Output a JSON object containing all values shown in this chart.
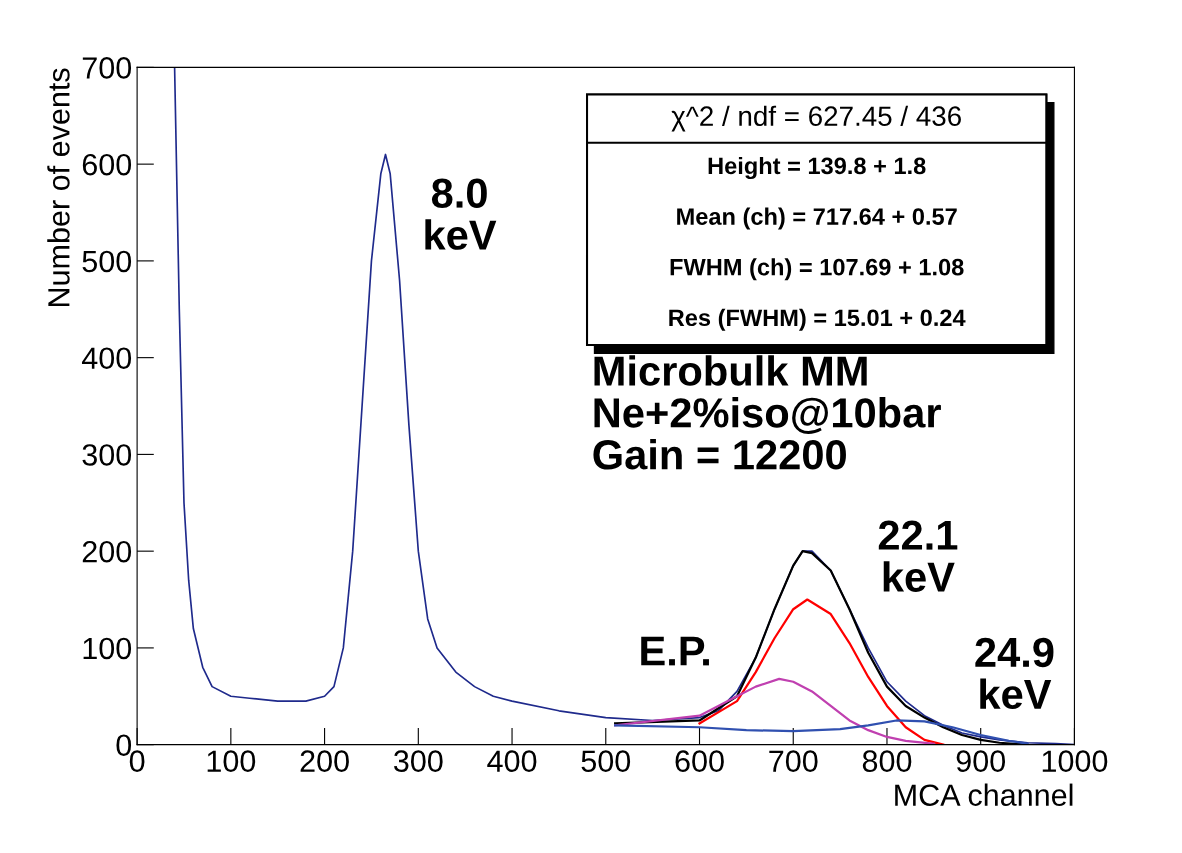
{
  "chart_data": {
    "type": "line",
    "xlabel": "MCA channel",
    "ylabel": "Number of events",
    "xlim": [
      0,
      1000
    ],
    "xticks": [
      0,
      100,
      200,
      300,
      400,
      500,
      600,
      700,
      800,
      900,
      1000
    ],
    "ylim": [
      0,
      700
    ],
    "yticks": [
      0,
      100,
      200,
      300,
      400,
      500,
      600,
      700
    ],
    "grid": false,
    "legend": false,
    "marker": "none",
    "line_style": "solid",
    "series": [
      {
        "color": "#1f2a8c",
        "x": [
          40,
          45,
          50,
          55,
          60,
          70,
          80,
          100,
          120,
          150,
          180,
          200,
          210,
          220,
          230,
          240,
          250,
          260,
          265,
          270,
          280,
          290,
          300,
          310,
          320,
          340,
          360,
          380,
          400,
          450,
          500,
          550,
          600,
          620,
          640,
          660,
          680,
          700,
          710,
          720,
          740,
          760,
          780,
          800,
          820,
          840,
          860,
          880,
          900,
          920,
          950,
          980,
          1000
        ],
        "values": [
          700,
          450,
          250,
          170,
          120,
          80,
          60,
          50,
          48,
          45,
          45,
          50,
          60,
          100,
          200,
          350,
          500,
          590,
          610,
          590,
          480,
          330,
          200,
          130,
          100,
          75,
          60,
          50,
          45,
          35,
          28,
          25,
          28,
          35,
          55,
          90,
          140,
          185,
          200,
          200,
          180,
          140,
          100,
          65,
          45,
          30,
          20,
          12,
          8,
          5,
          2,
          1,
          0
        ]
      },
      {
        "color": "#000000",
        "x": [
          510,
          600,
          640,
          660,
          680,
          700,
          710,
          720,
          740,
          760,
          780,
          800,
          820,
          840,
          860,
          880,
          900,
          920,
          950
        ],
        "values": [
          22,
          25,
          50,
          90,
          140,
          185,
          200,
          198,
          180,
          140,
          95,
          60,
          40,
          28,
          18,
          10,
          5,
          2,
          0
        ]
      },
      {
        "color": "#ff0000",
        "x": [
          600,
          640,
          660,
          680,
          700,
          715,
          740,
          760,
          780,
          800,
          820,
          840,
          860
        ],
        "values": [
          22,
          45,
          75,
          110,
          140,
          150,
          135,
          105,
          70,
          40,
          18,
          5,
          0
        ]
      },
      {
        "color": "#c040b0",
        "x": [
          510,
          600,
          640,
          660,
          685,
          700,
          720,
          740,
          760,
          780,
          800,
          820,
          850
        ],
        "values": [
          20,
          30,
          50,
          60,
          68,
          65,
          55,
          40,
          25,
          15,
          8,
          4,
          1
        ]
      },
      {
        "color": "#3050b0",
        "x": [
          510,
          600,
          650,
          700,
          750,
          780,
          810,
          840,
          870,
          900,
          930,
          950
        ],
        "values": [
          20,
          18,
          15,
          14,
          16,
          20,
          25,
          24,
          18,
          10,
          4,
          1
        ]
      }
    ],
    "annotations": [
      "χ^2 / ndf = 627.45 / 436",
      "Height = 139.8 + 1.8",
      "Mean (ch) = 717.64 + 0.57",
      "FWHM (ch) = 107.69 + 1.08",
      "Res (FWHM) = 15.01 + 0.24",
      "Microbulk MM\nNe+2%iso@10bar\nGain = 12200",
      "8.0\nkeV",
      "22.1\nkeV",
      "E.P.",
      "24.9\nkeV"
    ]
  }
}
